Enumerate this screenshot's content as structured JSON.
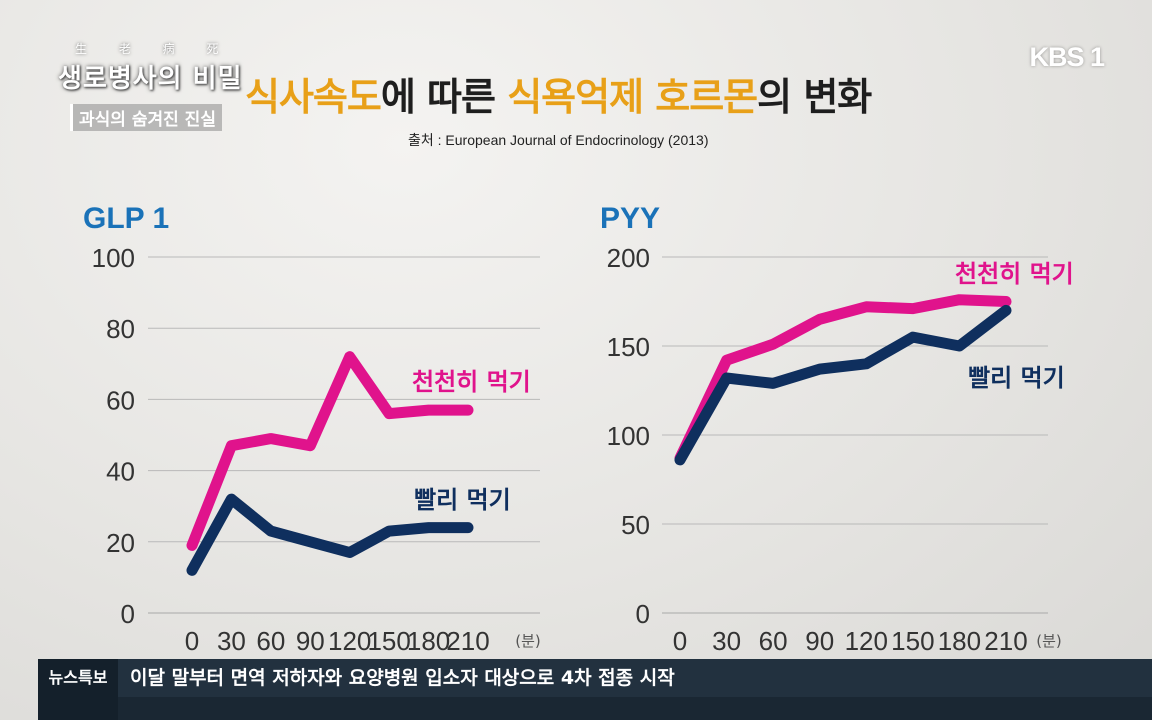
{
  "branding": {
    "show_hanja": "生 老 病 死",
    "show_title": "생로병사의 비밀",
    "show_subtitle": "과식의 숨겨진 진실",
    "channel": "KBS 1"
  },
  "header": {
    "title_parts": [
      "식사속도",
      "에 따른 ",
      "식욕억제 호르몬",
      "의 변화"
    ],
    "source": "출처 : European Journal of Endocrinology (2013)"
  },
  "colors": {
    "slow": "#e0138c",
    "fast": "#0f2f5e",
    "accent": "#e8a018",
    "axis_title": "#1a72b8"
  },
  "chart_data": [
    {
      "type": "line",
      "title": "GLP 1",
      "x": [
        0,
        30,
        60,
        90,
        120,
        150,
        180,
        210
      ],
      "x_unit": "(분)",
      "ylim": [
        0,
        100
      ],
      "yticks": [
        0,
        20,
        40,
        60,
        80,
        100
      ],
      "grid": true,
      "series": [
        {
          "name": "천천히 먹기",
          "key": "slow",
          "values": [
            19,
            47,
            49,
            47,
            72,
            56,
            57,
            57
          ]
        },
        {
          "name": "빨리 먹기",
          "key": "fast",
          "values": [
            12,
            32,
            23,
            20,
            17,
            23,
            24,
            24
          ]
        }
      ]
    },
    {
      "type": "line",
      "title": "PYY",
      "x": [
        0,
        30,
        60,
        90,
        120,
        150,
        180,
        210
      ],
      "x_unit": "(분)",
      "ylim": [
        0,
        200
      ],
      "yticks": [
        0,
        50,
        100,
        150,
        200
      ],
      "grid": true,
      "series": [
        {
          "name": "천천히 먹기",
          "key": "slow",
          "values": [
            87,
            142,
            151,
            165,
            172,
            171,
            176,
            175
          ]
        },
        {
          "name": "빨리 먹기",
          "key": "fast",
          "values": [
            86,
            132,
            129,
            137,
            140,
            155,
            150,
            170
          ]
        }
      ]
    }
  ],
  "ticker": {
    "tag": "뉴스특보",
    "text": "이달 말부터 면역 저하자와 요양병원 입소자 대상으로 4차 접종 시작"
  }
}
